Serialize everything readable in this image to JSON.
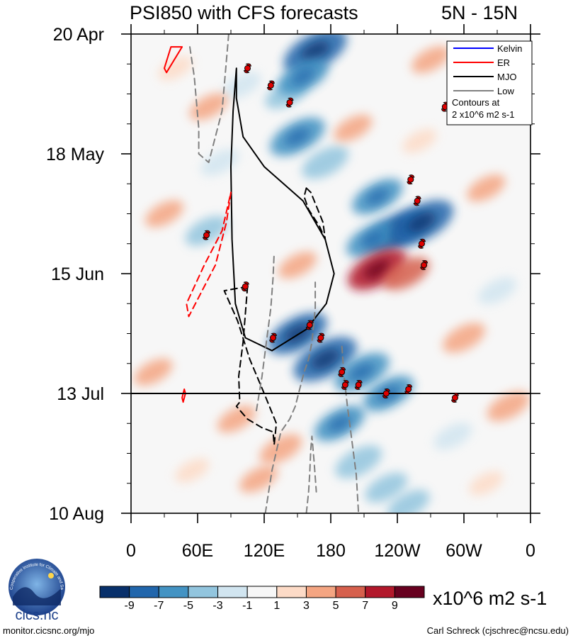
{
  "chart_data": {
    "type": "heatmap",
    "title": "PSI850 with CFS forecasts",
    "region_label": "5N - 15N",
    "x_axis": {
      "ticks": [
        {
          "lon": 0,
          "label": "0"
        },
        {
          "lon": 60,
          "label": "60E"
        },
        {
          "lon": 120,
          "label": "120E"
        },
        {
          "lon": 180,
          "label": "180"
        },
        {
          "lon": 240,
          "label": "120W"
        },
        {
          "lon": 300,
          "label": "60W"
        },
        {
          "lon": 360,
          "label": "0"
        }
      ],
      "range": [
        0,
        360
      ],
      "units": "degrees longitude (east)"
    },
    "y_axis": {
      "ticks": [
        {
          "day": 0,
          "label": "20 Apr"
        },
        {
          "day": 28,
          "label": "18 May"
        },
        {
          "day": 56,
          "label": "15 Jun"
        },
        {
          "day": 84,
          "label": "13 Jul"
        },
        {
          "day": 112,
          "label": "10 Aug"
        }
      ],
      "range_days": [
        0,
        112
      ],
      "direction": "time increases downward"
    },
    "current_date_line": {
      "day": 84,
      "label": "13 Jul"
    },
    "colorbar": {
      "levels": [
        -9,
        -7,
        -5,
        -3,
        -1,
        1,
        3,
        5,
        7,
        9
      ],
      "labels": [
        "-9",
        "-7",
        "-5",
        "-3",
        "-1",
        "1",
        "3",
        "5",
        "7",
        "9"
      ],
      "colors": [
        "#08306b",
        "#2166ac",
        "#4393c3",
        "#92c5de",
        "#d1e5f0",
        "#f7f7f7",
        "#fddbc7",
        "#f4a582",
        "#d6604d",
        "#b2182b",
        "#67001f"
      ],
      "units": "x10^6 m2 s-1"
    },
    "legend": {
      "entries": [
        {
          "name": "Kelvin",
          "color": "#0000ff",
          "style": "solid"
        },
        {
          "name": "ER",
          "color": "#ff0000",
          "style": "solid"
        },
        {
          "name": "MJO",
          "color": "#000000",
          "style": "solid"
        },
        {
          "name": "Low",
          "color": "#808080",
          "style": "solid"
        }
      ],
      "note_line1": "Contours at",
      "note_line2": "2 x10^6 m2 s-1",
      "placement": "top-right"
    },
    "anomaly_patches": [
      {
        "lon": 166,
        "day": 4,
        "value": -9
      },
      {
        "lon": 140,
        "day": 14,
        "value": -4
      },
      {
        "lon": 155,
        "day": 10,
        "value": -6
      },
      {
        "lon": 150,
        "day": 24,
        "value": -7
      },
      {
        "lon": 175,
        "day": 30,
        "value": -5
      },
      {
        "lon": 222,
        "day": 38,
        "value": -6
      },
      {
        "lon": 240,
        "day": 46,
        "value": -8
      },
      {
        "lon": 217,
        "day": 48,
        "value": -6
      },
      {
        "lon": 262,
        "day": 44,
        "value": -9
      },
      {
        "lon": 150,
        "day": 70,
        "value": -8
      },
      {
        "lon": 175,
        "day": 76,
        "value": -9
      },
      {
        "lon": 208,
        "day": 79,
        "value": -7
      },
      {
        "lon": 232,
        "day": 84,
        "value": -6
      },
      {
        "lon": 188,
        "day": 91,
        "value": -6
      },
      {
        "lon": 205,
        "day": 100,
        "value": -5
      },
      {
        "lon": 230,
        "day": 106,
        "value": -4
      },
      {
        "lon": 68,
        "day": 46,
        "value": -4
      },
      {
        "lon": 80,
        "day": 30,
        "value": -3
      },
      {
        "lon": 330,
        "day": 60,
        "value": -3
      },
      {
        "lon": 290,
        "day": 94,
        "value": -3
      },
      {
        "lon": 100,
        "day": 12,
        "value": -3
      },
      {
        "lon": 250,
        "day": 110,
        "value": -4
      },
      {
        "lon": 222,
        "day": 55,
        "value": 8
      },
      {
        "lon": 248,
        "day": 56,
        "value": 5
      },
      {
        "lon": 135,
        "day": 97,
        "value": 4
      },
      {
        "lon": 115,
        "day": 104,
        "value": 3
      },
      {
        "lon": 95,
        "day": 90,
        "value": 3
      },
      {
        "lon": 340,
        "day": 87,
        "value": 4
      },
      {
        "lon": 300,
        "day": 71,
        "value": 4
      },
      {
        "lon": 320,
        "day": 36,
        "value": 3
      },
      {
        "lon": 70,
        "day": 17,
        "value": 3
      },
      {
        "lon": 30,
        "day": 42,
        "value": 3
      },
      {
        "lon": 20,
        "day": 79,
        "value": 3
      },
      {
        "lon": 55,
        "day": 102,
        "value": 2
      },
      {
        "lon": 150,
        "day": 54,
        "value": 3
      },
      {
        "lon": 200,
        "day": 22,
        "value": 3
      },
      {
        "lon": 260,
        "day": 25,
        "value": 2
      },
      {
        "lon": 320,
        "day": 105,
        "value": 2
      },
      {
        "lon": 40,
        "day": 8,
        "value": 2
      },
      {
        "lon": 270,
        "day": 6,
        "value": 3
      }
    ],
    "contours": [
      {
        "type": "MJO",
        "style": "solid",
        "points": [
          [
            95,
            8
          ],
          [
            95,
            15
          ],
          [
            101,
            24
          ],
          [
            120,
            31
          ],
          [
            155,
            39
          ],
          [
            175,
            48
          ],
          [
            183,
            56
          ],
          [
            176,
            63
          ],
          [
            158,
            69
          ],
          [
            127,
            74
          ],
          [
            103,
            71
          ],
          [
            94,
            63
          ],
          [
            91,
            48
          ],
          [
            90,
            31
          ],
          [
            92,
            18
          ],
          [
            95,
            8
          ]
        ]
      },
      {
        "type": "MJO",
        "style": "dashed",
        "points": [
          [
            105,
            59
          ],
          [
            101,
            72
          ],
          [
            97,
            80
          ],
          [
            98,
            86
          ],
          [
            95,
            87
          ],
          [
            105,
            90
          ],
          [
            118,
            92
          ],
          [
            128,
            93
          ],
          [
            129,
            96
          ],
          [
            131,
            91
          ],
          [
            120,
            84
          ],
          [
            107,
            76
          ],
          [
            96,
            67
          ],
          [
            84,
            60
          ],
          [
            105,
            59
          ]
        ]
      },
      {
        "type": "MJO",
        "style": "dashed",
        "points": [
          [
            158,
            36
          ],
          [
            162,
            37
          ],
          [
            173,
            44
          ],
          [
            175,
            48
          ],
          [
            170,
            45
          ],
          [
            160,
            41
          ],
          [
            156,
            38
          ],
          [
            158,
            36
          ]
        ]
      },
      {
        "type": "ER",
        "style": "dashed",
        "points": [
          [
            90,
            37
          ],
          [
            86,
            44
          ],
          [
            76,
            54
          ],
          [
            52,
            66
          ],
          [
            50,
            63
          ],
          [
            66,
            54
          ],
          [
            82,
            46
          ],
          [
            90,
            37
          ]
        ]
      },
      {
        "type": "ER",
        "style": "solid",
        "points": [
          [
            36,
            3
          ],
          [
            46,
            3
          ],
          [
            32,
            9
          ],
          [
            30,
            8
          ],
          [
            36,
            3
          ]
        ]
      },
      {
        "type": "ER",
        "style": "solid",
        "points": [
          [
            48,
            83
          ],
          [
            46,
            85
          ],
          [
            47,
            86
          ],
          [
            49,
            84
          ],
          [
            48,
            83
          ]
        ]
      },
      {
        "type": "Low",
        "style": "dashed",
        "points": [
          [
            53,
            3
          ],
          [
            57,
            10
          ],
          [
            61,
            22
          ],
          [
            61,
            28
          ],
          [
            70,
            30
          ],
          [
            82,
            18
          ],
          [
            88,
            0
          ]
        ]
      },
      {
        "type": "Low",
        "style": "dashed",
        "points": [
          [
            113,
            88
          ],
          [
            118,
            80
          ],
          [
            122,
            72
          ],
          [
            126,
            64
          ],
          [
            128,
            57
          ],
          [
            129,
            51
          ]
        ]
      },
      {
        "type": "Low",
        "style": "dashed",
        "points": [
          [
            121,
            112
          ],
          [
            127,
            102
          ],
          [
            135,
            93
          ],
          [
            143,
            90
          ],
          [
            148,
            87
          ],
          [
            152,
            83
          ],
          [
            156,
            79
          ],
          [
            160,
            76
          ],
          [
            163,
            72
          ],
          [
            166,
            64
          ],
          [
            166,
            58
          ]
        ]
      },
      {
        "type": "Low",
        "style": "dashed",
        "points": [
          [
            158,
            112
          ],
          [
            160,
            107
          ],
          [
            161,
            103
          ],
          [
            162,
            97
          ],
          [
            163,
            94
          ],
          [
            165,
            100
          ],
          [
            167,
            107
          ]
        ]
      },
      {
        "type": "Low",
        "style": "dashed",
        "points": [
          [
            190,
            73
          ],
          [
            192,
            80
          ],
          [
            195,
            87
          ],
          [
            199,
            95
          ],
          [
            203,
            103
          ],
          [
            205,
            112
          ]
        ]
      }
    ],
    "tropical_cyclones": [
      {
        "lon": 105,
        "day": 8
      },
      {
        "lon": 126,
        "day": 12
      },
      {
        "lon": 143,
        "day": 16
      },
      {
        "lon": 252,
        "day": 34
      },
      {
        "lon": 258,
        "day": 39
      },
      {
        "lon": 262,
        "day": 49
      },
      {
        "lon": 264,
        "day": 54
      },
      {
        "lon": 283,
        "day": 17
      },
      {
        "lon": 68,
        "day": 47
      },
      {
        "lon": 103,
        "day": 59
      },
      {
        "lon": 161,
        "day": 68
      },
      {
        "lon": 128,
        "day": 71
      },
      {
        "lon": 171,
        "day": 71
      },
      {
        "lon": 190,
        "day": 79
      },
      {
        "lon": 193,
        "day": 82
      },
      {
        "lon": 205,
        "day": 82
      },
      {
        "lon": 230,
        "day": 84
      },
      {
        "lon": 250,
        "day": 83
      },
      {
        "lon": 292,
        "day": 85
      }
    ]
  },
  "footer": {
    "left": "monitor.cicsnc.org/mjo",
    "right": "Carl Schreck (cjschrec@ncsu.edu)"
  },
  "logo": {
    "name": "cics.nc",
    "ring_text": "Cooperative Institute for Climate and Satellites"
  }
}
